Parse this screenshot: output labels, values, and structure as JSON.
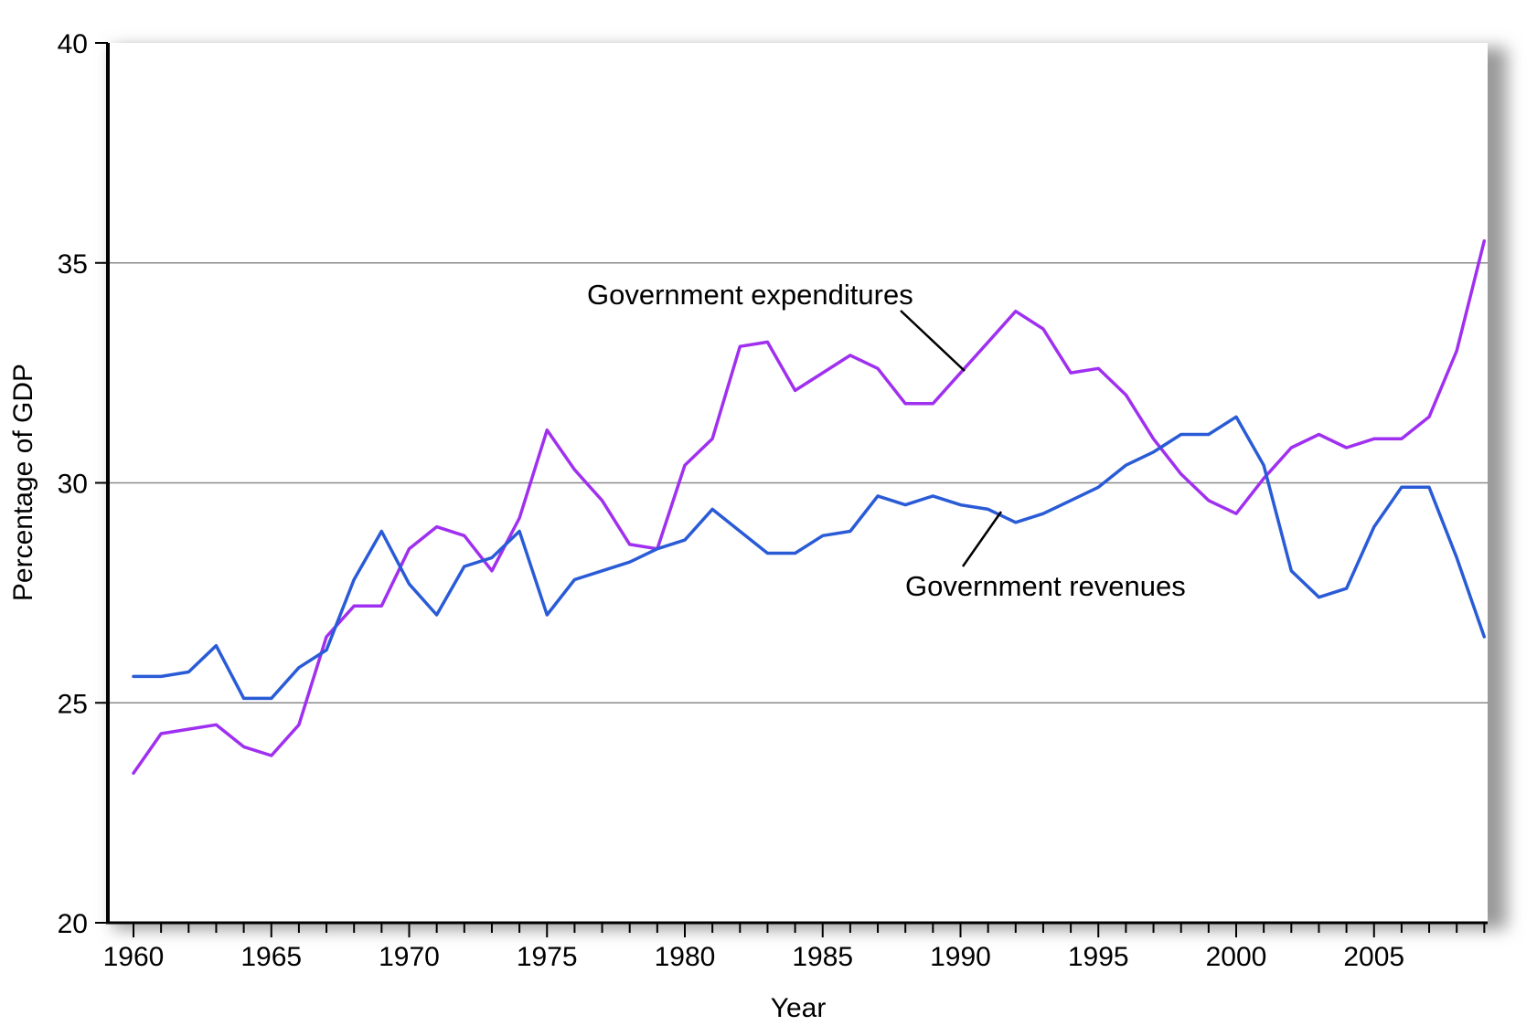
{
  "chart_data": {
    "type": "line",
    "title": "",
    "xlabel": "Year",
    "ylabel": "Percentage of GDP",
    "xlim": [
      1960,
      2009
    ],
    "ylim": [
      20,
      40
    ],
    "x_ticks": [
      "1960",
      "1965",
      "1970",
      "1975",
      "1980",
      "1985",
      "1990",
      "1995",
      "2000",
      "2005"
    ],
    "y_ticks": [
      "20",
      "25",
      "30",
      "35",
      "40"
    ],
    "grid": "horizontal",
    "legend": "none (direct labels)",
    "x": [
      1960,
      1961,
      1962,
      1963,
      1964,
      1965,
      1966,
      1967,
      1968,
      1969,
      1970,
      1971,
      1972,
      1973,
      1974,
      1975,
      1976,
      1977,
      1978,
      1979,
      1980,
      1981,
      1982,
      1983,
      1984,
      1985,
      1986,
      1987,
      1988,
      1989,
      1990,
      1991,
      1992,
      1993,
      1994,
      1995,
      1996,
      1997,
      1998,
      1999,
      2000,
      2001,
      2002,
      2003,
      2004,
      2005,
      2006,
      2007,
      2008,
      2009
    ],
    "series": [
      {
        "name": "Government expenditures",
        "color": "#a030f0",
        "values": [
          23.4,
          24.3,
          24.4,
          24.5,
          24.0,
          23.8,
          24.5,
          26.5,
          27.2,
          27.2,
          28.5,
          29.0,
          28.8,
          28.0,
          29.2,
          31.2,
          30.3,
          29.6,
          28.6,
          28.5,
          30.4,
          31.0,
          33.1,
          33.2,
          32.1,
          32.5,
          32.9,
          32.6,
          31.8,
          31.8,
          32.5,
          33.2,
          33.9,
          33.5,
          32.5,
          32.6,
          32.0,
          31.0,
          30.2,
          29.6,
          29.3,
          30.1,
          30.8,
          31.1,
          30.8,
          31.0,
          31.0,
          31.5,
          33.0,
          35.5
        ]
      },
      {
        "name": "Government revenues",
        "color": "#2a5bd7",
        "values": [
          25.6,
          25.6,
          25.7,
          26.3,
          25.1,
          25.1,
          25.8,
          26.2,
          27.8,
          28.9,
          27.7,
          27.0,
          28.1,
          28.3,
          28.9,
          27.0,
          27.8,
          28.0,
          28.2,
          28.5,
          28.7,
          29.4,
          28.9,
          28.4,
          28.4,
          28.8,
          28.9,
          29.7,
          29.5,
          29.7,
          29.5,
          29.4,
          29.1,
          29.3,
          29.6,
          29.9,
          30.4,
          30.7,
          31.1,
          31.1,
          31.5,
          30.4,
          28.0,
          27.4,
          27.6,
          29.0,
          29.9,
          29.9,
          28.3,
          26.5
        ]
      }
    ],
    "annotations": [
      "Government expenditures",
      "Government revenues"
    ]
  }
}
